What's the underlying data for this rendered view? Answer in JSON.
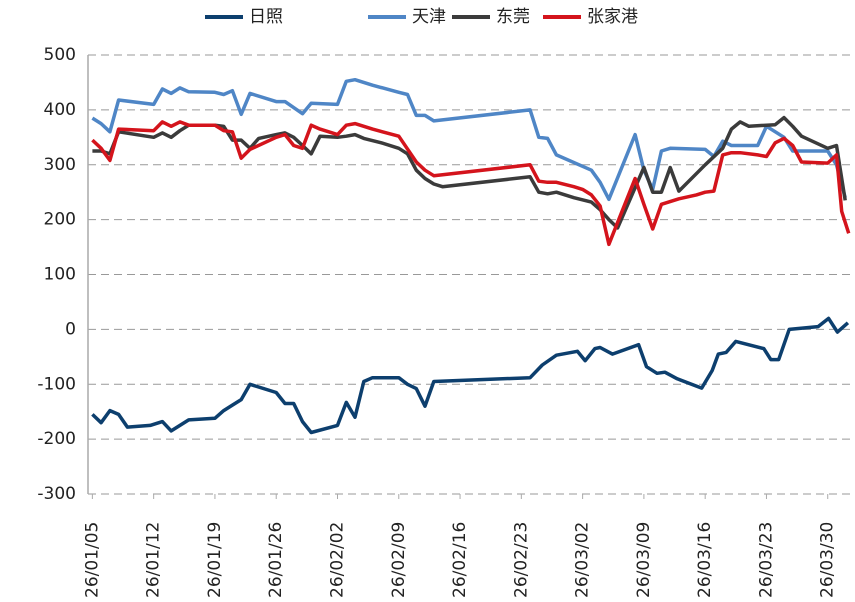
{
  "chart_data": {
    "type": "line",
    "xlim": [
      -0.5,
      87
    ],
    "xticks": [
      {
        "value": 0,
        "label": "26/01/05"
      },
      {
        "value": 7,
        "label": "26/01/12"
      },
      {
        "value": 14,
        "label": "26/01/19"
      },
      {
        "value": 21,
        "label": "26/01/26"
      },
      {
        "value": 28,
        "label": "26/02/02"
      },
      {
        "value": 35,
        "label": "26/02/09"
      },
      {
        "value": 42,
        "label": "26/02/16"
      },
      {
        "value": 49,
        "label": "26/02/23"
      },
      {
        "value": 56,
        "label": "26/03/02"
      },
      {
        "value": 63,
        "label": "26/03/09"
      },
      {
        "value": 70,
        "label": "26/03/16"
      },
      {
        "value": 77,
        "label": "26/03/23"
      },
      {
        "value": 84,
        "label": "26/03/30"
      }
    ],
    "ylim": [
      -300,
      500
    ],
    "yticks": [
      -300,
      -200,
      -100,
      0,
      100,
      200,
      300,
      400,
      500
    ],
    "grid": true,
    "legend": "top",
    "series": [
      {
        "name": "日照",
        "color": "#0d3f6e",
        "x": [
          0,
          1,
          2,
          3,
          4,
          6.6,
          8,
          9,
          11,
          14,
          15,
          16,
          17,
          18,
          21,
          22,
          23,
          24,
          25,
          28,
          29,
          30,
          31,
          32,
          35,
          36,
          37,
          38,
          39,
          50,
          51.4,
          53,
          55.4,
          56.3,
          57.4,
          58,
          59.4,
          62.4,
          63.3,
          64.5,
          65.4,
          66.8,
          69.6,
          70.8,
          71.5,
          72.4,
          73.5,
          76.7,
          77.5,
          78.4,
          79.6,
          82.9,
          84.1,
          85.1,
          86.3
        ],
        "values": [
          -155,
          -170,
          -148,
          -155,
          -178,
          -175,
          -168,
          -185,
          -165,
          -162,
          -148,
          -138,
          -128,
          -100,
          -115,
          -135,
          -135,
          -168,
          -188,
          -175,
          -133,
          -160,
          -95,
          -88,
          -88,
          -100,
          -108,
          -140,
          -95,
          -88,
          -65,
          -47,
          -40,
          -57,
          -35,
          -33,
          -45,
          -28,
          -68,
          -80,
          -78,
          -90,
          -107,
          -75,
          -45,
          -42,
          -22,
          -35,
          -55,
          -55,
          0,
          5,
          20,
          -5,
          12
        ]
      },
      {
        "name": "天津",
        "color": "#4f86c6",
        "x": [
          0,
          1,
          2,
          3,
          7,
          8,
          9,
          10,
          11,
          14,
          15,
          16,
          17,
          18,
          21,
          22,
          24,
          25,
          28,
          29,
          30,
          32,
          35,
          36,
          37,
          38,
          39,
          50,
          51,
          52,
          53,
          57,
          58,
          59,
          62,
          63,
          64,
          65,
          66,
          70,
          71,
          72,
          73,
          75,
          76,
          77,
          79,
          80,
          84,
          85,
          86
        ],
        "values": [
          385,
          375,
          360,
          418,
          410,
          438,
          430,
          440,
          433,
          432,
          428,
          435,
          392,
          430,
          415,
          415,
          393,
          412,
          410,
          452,
          455,
          445,
          432,
          428,
          390,
          390,
          380,
          400,
          350,
          348,
          318,
          290,
          268,
          237,
          355,
          290,
          255,
          325,
          330,
          328,
          315,
          343,
          335,
          335,
          335,
          370,
          350,
          325,
          325,
          300,
          240
        ]
      },
      {
        "name": "东莞",
        "color": "#3b3b3b",
        "x": [
          0,
          1,
          2,
          3,
          7,
          8,
          9,
          10,
          11,
          14,
          15,
          16,
          17,
          18,
          19,
          21,
          22,
          23,
          24,
          25,
          26,
          28,
          29,
          30,
          31,
          33,
          35,
          36,
          37,
          38,
          39,
          40,
          50,
          51,
          52,
          53,
          55,
          57,
          58,
          59,
          60,
          63,
          64,
          65,
          66,
          67,
          70,
          72,
          73,
          74,
          75,
          77,
          78,
          79,
          80,
          81,
          84,
          85,
          86
        ],
        "values": [
          325,
          325,
          320,
          360,
          350,
          358,
          350,
          362,
          372,
          372,
          370,
          345,
          345,
          330,
          348,
          355,
          358,
          350,
          335,
          320,
          352,
          350,
          352,
          355,
          348,
          340,
          330,
          320,
          290,
          275,
          265,
          260,
          278,
          250,
          247,
          250,
          240,
          232,
          218,
          200,
          185,
          295,
          250,
          250,
          295,
          252,
          300,
          330,
          365,
          378,
          370,
          372,
          373,
          386,
          370,
          352,
          330,
          335,
          235
        ]
      },
      {
        "name": "张家港",
        "color": "#d4141c",
        "x": [
          0,
          1,
          2,
          3,
          7,
          8,
          9,
          10,
          11,
          14,
          15,
          16,
          17,
          18,
          21,
          22,
          23,
          24,
          25,
          26,
          28,
          29,
          30,
          31,
          32,
          35,
          37,
          38,
          39,
          50,
          51,
          52,
          53,
          55,
          56,
          57,
          58,
          59,
          62,
          63,
          64,
          65,
          67,
          69,
          70,
          71,
          72,
          73,
          74,
          76,
          77,
          78,
          79,
          80,
          81,
          84,
          85,
          85.6,
          86.4
        ],
        "values": [
          345,
          330,
          308,
          365,
          362,
          378,
          370,
          378,
          372,
          372,
          362,
          360,
          312,
          328,
          350,
          355,
          335,
          330,
          372,
          365,
          355,
          372,
          375,
          370,
          365,
          352,
          305,
          290,
          280,
          300,
          270,
          268,
          268,
          260,
          255,
          245,
          225,
          155,
          275,
          228,
          183,
          228,
          238,
          245,
          250,
          252,
          318,
          322,
          322,
          318,
          315,
          340,
          348,
          335,
          305,
          303,
          318,
          215,
          175
        ]
      }
    ]
  }
}
